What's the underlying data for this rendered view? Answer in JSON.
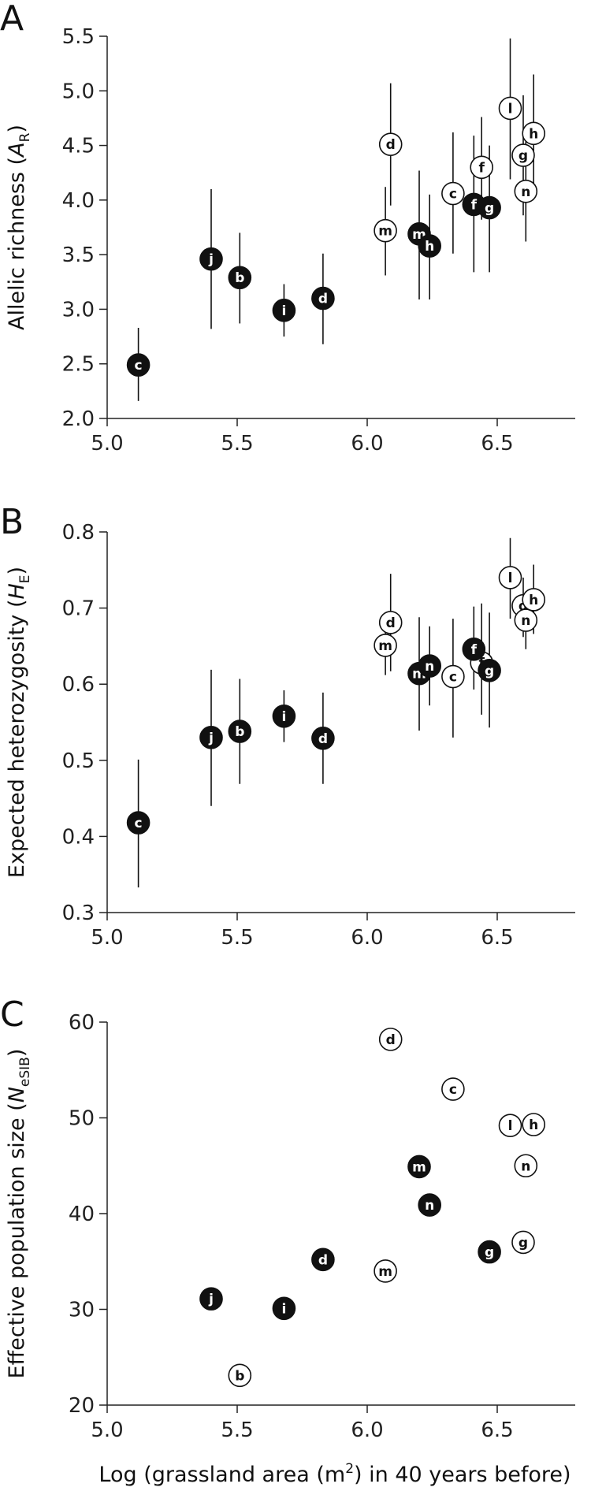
{
  "figure": {
    "xlabel_prefix": "Log (grassland area (m",
    "xlabel_sup": "2",
    "xlabel_suffix": ") in 40 years before)"
  },
  "chart_data": [
    {
      "type": "scatter",
      "panel_label": "A",
      "ylabel_prefix": "Allelic richness (",
      "ylabel_italic": "A",
      "ylabel_sub": "R",
      "ylabel_suffix": ")",
      "xlim": [
        5.0,
        6.8
      ],
      "ylim": [
        2.0,
        5.5
      ],
      "xticks": [
        5.0,
        5.5,
        6.0,
        6.5
      ],
      "xtick_labels": [
        "5.0",
        "5.5",
        "6.0",
        "6.5"
      ],
      "yticks": [
        2.0,
        2.5,
        3.0,
        3.5,
        4.0,
        4.5,
        5.0,
        5.5
      ],
      "ytick_labels": [
        "2.0",
        "2.5",
        "3.0",
        "3.5",
        "4.0",
        "4.5",
        "5.0",
        "5.5"
      ],
      "has_error_bars": true,
      "points": [
        {
          "label": "c",
          "x": 5.12,
          "y": 2.49,
          "lo": 2.16,
          "hi": 2.83,
          "filled": true
        },
        {
          "label": "j",
          "x": 5.4,
          "y": 3.46,
          "lo": 2.82,
          "hi": 4.1,
          "filled": true
        },
        {
          "label": "b",
          "x": 5.51,
          "y": 3.29,
          "lo": 2.87,
          "hi": 3.7,
          "filled": true
        },
        {
          "label": "i",
          "x": 5.68,
          "y": 2.99,
          "lo": 2.75,
          "hi": 3.23,
          "filled": true
        },
        {
          "label": "d",
          "x": 5.83,
          "y": 3.1,
          "lo": 2.68,
          "hi": 3.51,
          "filled": true
        },
        {
          "label": "m",
          "x": 6.07,
          "y": 3.72,
          "lo": 3.31,
          "hi": 4.12,
          "filled": false
        },
        {
          "label": "d",
          "x": 6.09,
          "y": 4.51,
          "lo": 3.95,
          "hi": 5.07,
          "filled": false
        },
        {
          "label": "m",
          "x": 6.2,
          "y": 3.69,
          "lo": 3.09,
          "hi": 4.27,
          "filled": true
        },
        {
          "label": "h",
          "x": 6.24,
          "y": 3.58,
          "lo": 3.09,
          "hi": 4.05,
          "filled": true
        },
        {
          "label": "c",
          "x": 6.33,
          "y": 4.06,
          "lo": 3.51,
          "hi": 4.62,
          "filled": false
        },
        {
          "label": "f",
          "x": 6.41,
          "y": 3.96,
          "lo": 3.34,
          "hi": 4.59,
          "filled": true
        },
        {
          "label": "f",
          "x": 6.44,
          "y": 4.3,
          "lo": 3.82,
          "hi": 4.76,
          "filled": false
        },
        {
          "label": "g",
          "x": 6.47,
          "y": 3.93,
          "lo": 3.34,
          "hi": 4.5,
          "filled": true
        },
        {
          "label": "l",
          "x": 6.55,
          "y": 4.84,
          "lo": 4.19,
          "hi": 5.48,
          "filled": false
        },
        {
          "label": "g",
          "x": 6.6,
          "y": 4.41,
          "lo": 3.86,
          "hi": 4.96,
          "filled": false
        },
        {
          "label": "n",
          "x": 6.61,
          "y": 4.08,
          "lo": 3.62,
          "hi": 4.54,
          "filled": false
        },
        {
          "label": "h",
          "x": 6.64,
          "y": 4.61,
          "lo": 4.06,
          "hi": 5.15,
          "filled": false
        }
      ]
    },
    {
      "type": "scatter",
      "panel_label": "B",
      "ylabel_prefix": "Expected heterozygosity (",
      "ylabel_italic": "H",
      "ylabel_sub": "E",
      "ylabel_suffix": ")",
      "xlim": [
        5.0,
        6.8
      ],
      "ylim": [
        0.3,
        0.8
      ],
      "xticks": [
        5.0,
        5.5,
        6.0,
        6.5
      ],
      "xtick_labels": [
        "5.0",
        "5.5",
        "6.0",
        "6.5"
      ],
      "yticks": [
        0.3,
        0.4,
        0.5,
        0.6,
        0.7,
        0.8
      ],
      "ytick_labels": [
        "0.3",
        "0.4",
        "0.5",
        "0.6",
        "0.7",
        "0.8"
      ],
      "has_error_bars": true,
      "points": [
        {
          "label": "c",
          "x": 5.12,
          "y": 0.418,
          "lo": 0.333,
          "hi": 0.501,
          "filled": true
        },
        {
          "label": "j",
          "x": 5.4,
          "y": 0.53,
          "lo": 0.44,
          "hi": 0.619,
          "filled": true
        },
        {
          "label": "b",
          "x": 5.51,
          "y": 0.538,
          "lo": 0.469,
          "hi": 0.607,
          "filled": true
        },
        {
          "label": "i",
          "x": 5.68,
          "y": 0.558,
          "lo": 0.524,
          "hi": 0.592,
          "filled": true
        },
        {
          "label": "d",
          "x": 5.83,
          "y": 0.529,
          "lo": 0.469,
          "hi": 0.589,
          "filled": true
        },
        {
          "label": "m",
          "x": 6.07,
          "y": 0.651,
          "lo": 0.612,
          "hi": 0.69,
          "filled": false
        },
        {
          "label": "d",
          "x": 6.09,
          "y": 0.681,
          "lo": 0.617,
          "hi": 0.745,
          "filled": false
        },
        {
          "label": "m",
          "x": 6.2,
          "y": 0.614,
          "lo": 0.539,
          "hi": 0.688,
          "filled": true
        },
        {
          "label": "n",
          "x": 6.24,
          "y": 0.624,
          "lo": 0.572,
          "hi": 0.676,
          "filled": true
        },
        {
          "label": "c",
          "x": 6.33,
          "y": 0.61,
          "lo": 0.53,
          "hi": 0.686,
          "filled": false
        },
        {
          "label": "f",
          "x": 6.41,
          "y": 0.646,
          "lo": 0.593,
          "hi": 0.702,
          "filled": true
        },
        {
          "label": "f",
          "x": 6.44,
          "y": 0.628,
          "lo": 0.56,
          "hi": 0.706,
          "filled": false
        },
        {
          "label": "g",
          "x": 6.47,
          "y": 0.618,
          "lo": 0.543,
          "hi": 0.694,
          "filled": true
        },
        {
          "label": "l",
          "x": 6.55,
          "y": 0.74,
          "lo": 0.686,
          "hi": 0.792,
          "filled": false
        },
        {
          "label": "g",
          "x": 6.6,
          "y": 0.703,
          "lo": 0.662,
          "hi": 0.74,
          "filled": false
        },
        {
          "label": "n",
          "x": 6.61,
          "y": 0.684,
          "lo": 0.646,
          "hi": 0.722,
          "filled": false
        },
        {
          "label": "h",
          "x": 6.64,
          "y": 0.711,
          "lo": 0.666,
          "hi": 0.757,
          "filled": false
        }
      ]
    },
    {
      "type": "scatter",
      "panel_label": "C",
      "ylabel_prefix": "Effective population size (",
      "ylabel_italic": "N",
      "ylabel_sub": "eSIB",
      "ylabel_suffix": ")",
      "xlim": [
        5.0,
        6.8
      ],
      "ylim": [
        20,
        60
      ],
      "xticks": [
        5.0,
        5.5,
        6.0,
        6.5
      ],
      "xtick_labels": [
        "5.0",
        "5.5",
        "6.0",
        "6.5"
      ],
      "yticks": [
        20,
        30,
        40,
        50,
        60
      ],
      "ytick_labels": [
        "20",
        "30",
        "40",
        "50",
        "60"
      ],
      "has_error_bars": false,
      "points": [
        {
          "label": "j",
          "x": 5.4,
          "y": 31.1,
          "filled": true
        },
        {
          "label": "b",
          "x": 5.51,
          "y": 23.1,
          "filled": false
        },
        {
          "label": "i",
          "x": 5.68,
          "y": 30.1,
          "filled": true
        },
        {
          "label": "d",
          "x": 5.83,
          "y": 35.2,
          "filled": true
        },
        {
          "label": "m",
          "x": 6.07,
          "y": 34.0,
          "filled": false
        },
        {
          "label": "d",
          "x": 6.09,
          "y": 58.2,
          "filled": false
        },
        {
          "label": "m",
          "x": 6.2,
          "y": 44.9,
          "filled": true
        },
        {
          "label": "n",
          "x": 6.24,
          "y": 40.9,
          "filled": true
        },
        {
          "label": "c",
          "x": 6.33,
          "y": 53.0,
          "filled": false
        },
        {
          "label": "g",
          "x": 6.47,
          "y": 36.0,
          "filled": true
        },
        {
          "label": "l",
          "x": 6.55,
          "y": 49.2,
          "filled": false
        },
        {
          "label": "g",
          "x": 6.6,
          "y": 37.0,
          "filled": false
        },
        {
          "label": "n",
          "x": 6.61,
          "y": 45.0,
          "filled": false
        },
        {
          "label": "h",
          "x": 6.64,
          "y": 49.3,
          "filled": false
        }
      ]
    }
  ]
}
